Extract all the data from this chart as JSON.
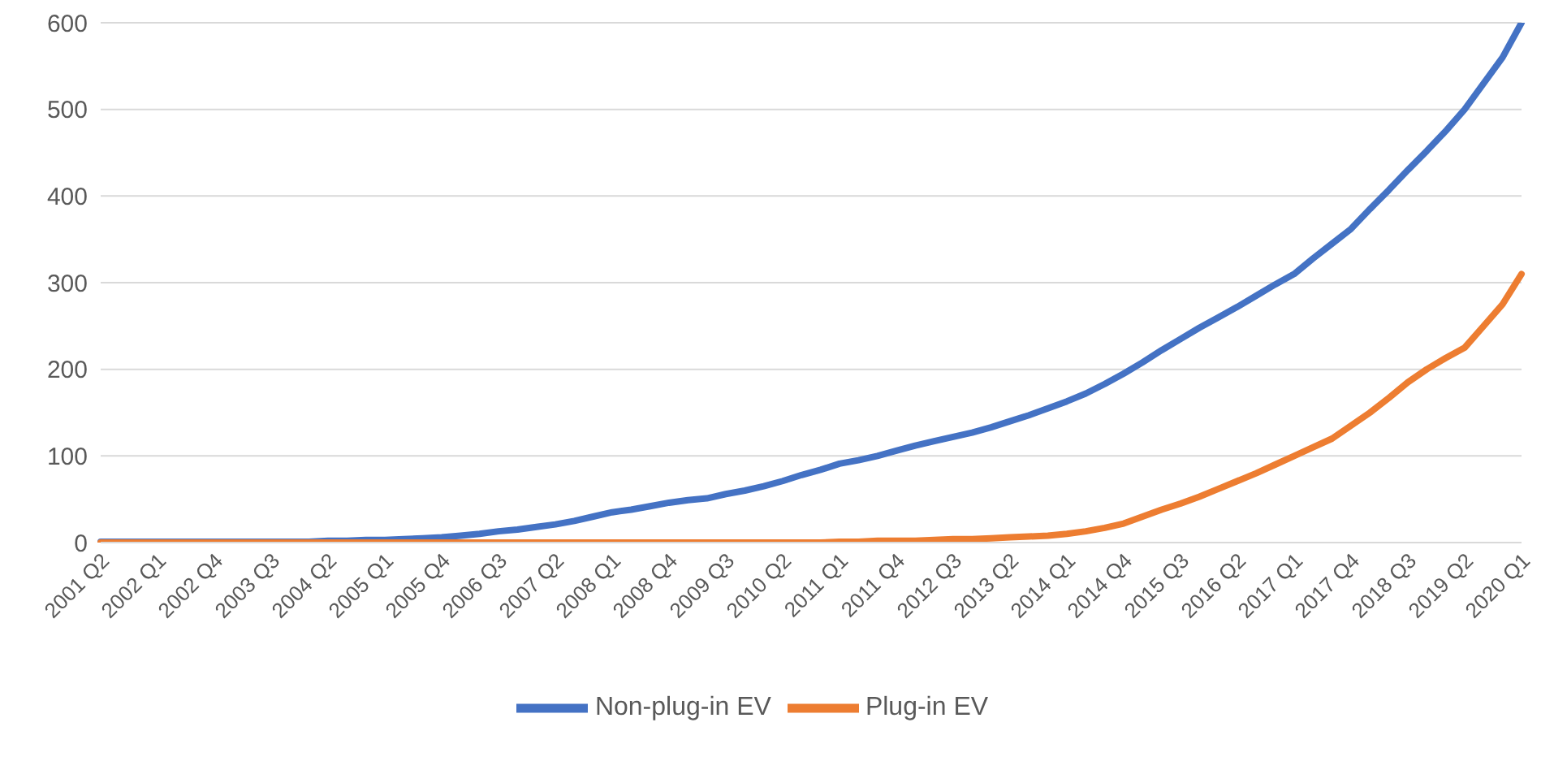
{
  "chart_data": {
    "type": "line",
    "categories": [
      "2001 Q2",
      null,
      null,
      "2002 Q1",
      null,
      null,
      "2002 Q4",
      null,
      null,
      "2003 Q3",
      null,
      null,
      "2004 Q2",
      null,
      null,
      "2005 Q1",
      null,
      null,
      "2005 Q4",
      null,
      null,
      "2006 Q3",
      null,
      null,
      "2007 Q2",
      null,
      null,
      "2008 Q1",
      null,
      null,
      "2008 Q4",
      null,
      null,
      "2009 Q3",
      null,
      null,
      "2010 Q2",
      null,
      null,
      "2011 Q1",
      null,
      null,
      "2011 Q4",
      null,
      null,
      "2012 Q3",
      null,
      null,
      "2013 Q2",
      null,
      null,
      "2014 Q1",
      null,
      null,
      "2014 Q4",
      null,
      null,
      "2015 Q3",
      null,
      null,
      "2016 Q2",
      null,
      null,
      "2017 Q1",
      null,
      null,
      "2017 Q4",
      null,
      null,
      "2018 Q3",
      null,
      null,
      "2019 Q2",
      null,
      null,
      "2020 Q1"
    ],
    "series": [
      {
        "name": "Non-plug-in EV",
        "color": "#4472c4",
        "values": [
          1,
          1,
          1,
          1,
          1,
          1,
          1,
          1,
          1,
          1,
          1,
          1,
          2,
          2,
          3,
          3,
          4,
          5,
          6,
          8,
          10,
          13,
          15,
          18,
          21,
          25,
          30,
          35,
          38,
          42,
          46,
          49,
          51,
          56,
          60,
          65,
          71,
          78,
          84,
          91,
          95,
          100,
          106,
          112,
          117,
          122,
          127,
          133,
          140,
          147,
          155,
          163,
          172,
          183,
          195,
          208,
          222,
          235,
          248,
          260,
          272,
          285,
          298,
          310,
          328,
          345,
          362,
          385,
          407,
          430,
          452,
          475,
          500,
          530,
          560,
          600
        ]
      },
      {
        "name": "Plug-in EV",
        "color": "#ed7d31",
        "values": [
          0,
          0,
          0,
          0,
          0,
          0,
          0,
          0,
          0,
          0,
          0,
          0,
          0,
          0,
          0,
          0,
          0,
          0,
          0,
          0,
          0,
          0,
          0,
          0,
          0,
          0,
          0,
          0,
          0,
          0,
          0,
          0,
          0,
          0,
          0,
          0,
          0,
          0,
          0,
          1,
          1,
          2,
          2,
          2,
          3,
          4,
          4,
          5,
          6,
          7,
          8,
          10,
          13,
          17,
          22,
          30,
          38,
          45,
          53,
          62,
          71,
          80,
          90,
          100,
          110,
          120,
          135,
          150,
          167,
          185,
          200,
          213,
          225,
          250,
          275,
          310
        ]
      }
    ],
    "ylim": [
      0,
      600
    ],
    "yticks": [
      0,
      100,
      200,
      300,
      400,
      500,
      600
    ],
    "grid": "y",
    "legend": "bottom",
    "marker": "none",
    "line_style": "solid"
  }
}
